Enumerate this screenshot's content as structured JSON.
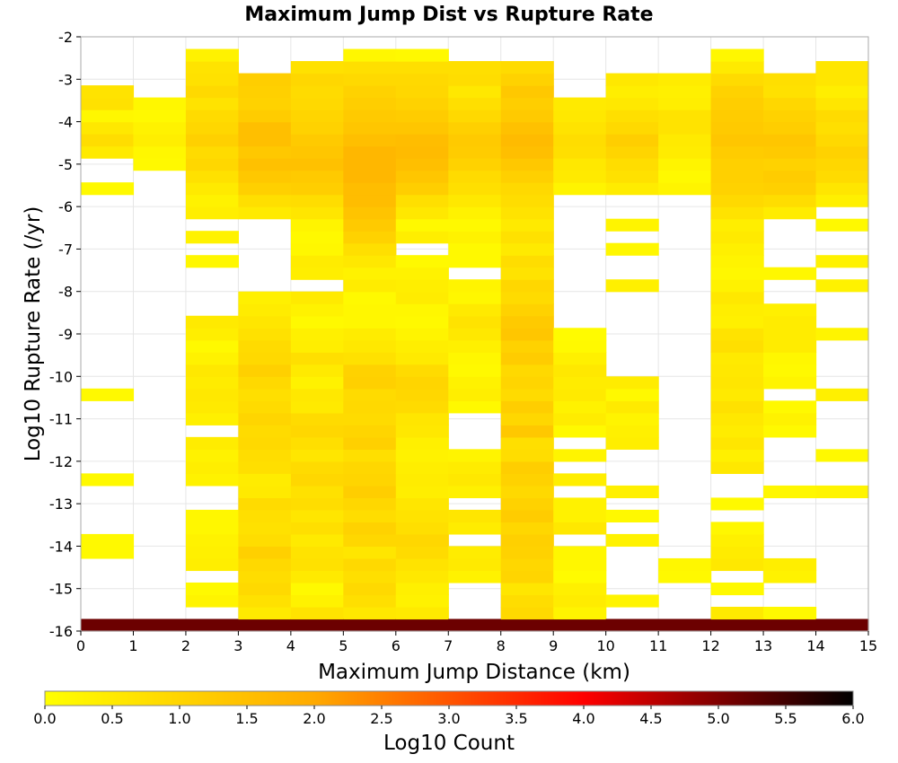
{
  "chart_data": {
    "type": "heatmap",
    "title": "Maximum Jump Dist vs Rupture Rate",
    "xlabel": "Maximum Jump Distance (km)",
    "ylabel": "Log10 Rupture Rate (/yr)",
    "xlim": [
      0,
      15
    ],
    "ylim": [
      -16,
      -2
    ],
    "x_ticks": [
      "0",
      "1",
      "2",
      "3",
      "4",
      "5",
      "6",
      "7",
      "8",
      "9",
      "10",
      "11",
      "12",
      "13",
      "14",
      "15"
    ],
    "y_ticks": [
      "-2",
      "-3",
      "-4",
      "-5",
      "-6",
      "-7",
      "-8",
      "-9",
      "-10",
      "-11",
      "-12",
      "-13",
      "-14",
      "-15",
      "-16"
    ],
    "x_bin_width": 1,
    "y_bin_height": 0.2857,
    "x_bin_start": 0,
    "y_bin_start": -16,
    "grid": true,
    "colorbar": {
      "label": "Log10 Count",
      "range": [
        0,
        6
      ],
      "ticks": [
        "0.0",
        "0.5",
        "1.0",
        "1.5",
        "2.0",
        "2.5",
        "3.0",
        "3.5",
        "4.0",
        "4.5",
        "5.0",
        "5.5",
        "6.0"
      ],
      "stops": [
        "#ffff00",
        "#ffaa00",
        "#ff0000",
        "#000000"
      ]
    },
    "columns": [
      [
        5.15,
        0,
        0,
        0,
        0,
        0,
        0.15,
        0.15,
        0,
        0,
        0,
        0,
        0.15,
        0,
        0,
        0,
        0,
        0,
        0,
        0.15,
        0,
        0,
        0,
        0,
        0,
        0,
        0,
        0,
        0,
        0,
        0,
        0,
        0,
        0,
        0,
        0,
        0.15,
        0,
        0,
        0.5,
        0.8,
        0.55,
        0.2,
        0.7,
        0.65,
        0,
        0,
        0
      ],
      [
        5.15,
        0,
        0,
        0,
        0,
        0,
        0,
        0,
        0,
        0,
        0,
        0,
        0,
        0,
        0,
        0,
        0,
        0,
        0,
        0,
        0,
        0,
        0,
        0,
        0,
        0,
        0,
        0,
        0,
        0,
        0,
        0,
        0,
        0,
        0,
        0,
        0,
        0,
        0.15,
        0.2,
        0.4,
        0.3,
        0.15,
        0.2,
        0,
        0,
        0,
        0
      ],
      [
        5.15,
        0,
        0.25,
        0.15,
        0,
        0.4,
        0.35,
        0.3,
        0.2,
        0.2,
        0,
        0,
        0.3,
        0.4,
        0.3,
        0.45,
        0,
        0.35,
        0.5,
        0.55,
        0.45,
        0.55,
        0.3,
        0.15,
        0.4,
        0.5,
        0,
        0,
        0,
        0,
        0.2,
        0,
        0.3,
        0,
        0.4,
        0.3,
        0.5,
        0.7,
        0.95,
        0.85,
        1.1,
        0.95,
        0.85,
        0.65,
        0.9,
        0.7,
        0.65,
        0.3
      ],
      [
        5.15,
        0.5,
        0.7,
        0.9,
        0.8,
        0.9,
        1.1,
        0.8,
        0.7,
        0.75,
        0.85,
        0.5,
        0.45,
        0.75,
        0.8,
        0.9,
        0.85,
        1.0,
        0.85,
        0.75,
        0.9,
        1.1,
        0.9,
        0.85,
        0.7,
        0.6,
        0.45,
        0.35,
        0,
        0,
        0,
        0,
        0,
        0,
        0.5,
        0.75,
        1.1,
        1.3,
        1.45,
        1.3,
        1.5,
        1.5,
        1.2,
        1.05,
        1.1,
        1.15,
        0,
        0
      ],
      [
        5.15,
        0.65,
        0.3,
        0.15,
        0.5,
        0.7,
        0.65,
        0.5,
        0.75,
        0.6,
        0.8,
        0.7,
        0.95,
        0.85,
        0.6,
        0.75,
        0.95,
        0.85,
        0.5,
        0.55,
        0.3,
        0.5,
        0.75,
        0.4,
        0.35,
        0.15,
        0.3,
        0.5,
        0,
        0.4,
        0.45,
        0.2,
        0.15,
        0.25,
        0.6,
        0.8,
        1.15,
        1.25,
        1.45,
        1.35,
        1.25,
        1.05,
        1.0,
        0.9,
        0.85,
        0.95,
        0.7,
        0
      ],
      [
        5.15,
        0.55,
        0.75,
        0.9,
        0.75,
        0.9,
        0.6,
        0.95,
        1.05,
        0.8,
        0.95,
        1.15,
        1.0,
        0.95,
        0.75,
        1.1,
        1.0,
        0.85,
        0.9,
        0.85,
        1.1,
        1.05,
        0.7,
        0.55,
        0.45,
        0.2,
        0.2,
        0.15,
        0.45,
        0.3,
        0.55,
        0.75,
        1.05,
        1.25,
        1.4,
        1.55,
        1.55,
        1.7,
        1.7,
        1.7,
        1.5,
        1.35,
        1.25,
        1.15,
        1.05,
        0.9,
        0.75,
        0.2
      ],
      [
        5.15,
        0.5,
        0.3,
        0.35,
        0.55,
        0.65,
        0.85,
        0.95,
        0.75,
        0.65,
        0.6,
        0.4,
        0.45,
        0.4,
        0.3,
        0.35,
        0.55,
        0.6,
        0.85,
        0.95,
        1.0,
        0.85,
        0.5,
        0.4,
        0.25,
        0.15,
        0.2,
        0.45,
        0.4,
        0.3,
        0.15,
        0,
        0.4,
        0.15,
        0.55,
        0.75,
        1.15,
        1.35,
        1.5,
        1.6,
        1.55,
        1.35,
        1.2,
        1.05,
        0.95,
        0.9,
        0.75,
        0.15
      ],
      [
        5.15,
        0,
        0,
        0,
        0.3,
        0.5,
        0.45,
        0,
        0.45,
        0.6,
        0,
        0.35,
        0.55,
        0.45,
        0.25,
        0,
        0,
        0,
        0.15,
        0.4,
        0.3,
        0.15,
        0.2,
        0.35,
        0.55,
        0.65,
        0.5,
        0.2,
        0.25,
        0,
        0.15,
        0.15,
        0.3,
        0.15,
        0.3,
        0.55,
        0.75,
        0.85,
        1.05,
        1.2,
        1.25,
        1.1,
        0.9,
        0.75,
        0.55,
        0.8,
        0.75,
        0
      ],
      [
        5.15,
        0.9,
        0.8,
        0.6,
        1.0,
        0.95,
        1.05,
        1.1,
        0.95,
        1.2,
        1.05,
        0.9,
        1.05,
        1.15,
        0.8,
        0.75,
        1.3,
        0.95,
        1.15,
        0.85,
        1.0,
        0.9,
        1.2,
        1.05,
        1.35,
        1.25,
        1.05,
        0.85,
        0.95,
        0.65,
        0.8,
        0.5,
        0.7,
        0.5,
        0.65,
        0.8,
        0.9,
        1.1,
        1.3,
        1.5,
        1.6,
        1.45,
        1.25,
        1.15,
        1.3,
        1.05,
        0.85,
        0
      ],
      [
        5.15,
        0.25,
        0.45,
        0.35,
        0.1,
        0.2,
        0.2,
        0,
        0.55,
        0.3,
        0.3,
        0,
        0.4,
        0,
        0.25,
        0,
        0.15,
        0.45,
        0.3,
        0.5,
        0.45,
        0.55,
        0.35,
        0.15,
        0.1,
        0,
        0,
        0,
        0,
        0,
        0,
        0,
        0,
        0,
        0,
        0,
        0.25,
        0.5,
        0.55,
        0.75,
        0.8,
        0.65,
        0.55,
        0.5,
        0,
        0,
        0,
        0
      ],
      [
        5.15,
        0,
        0.25,
        0,
        0,
        0,
        0,
        0.3,
        0,
        0.15,
        0,
        0.35,
        0,
        0,
        0,
        0.4,
        0.35,
        0.25,
        0.5,
        0.15,
        0.45,
        0,
        0,
        0,
        0,
        0,
        0,
        0,
        0.35,
        0,
        0,
        0.2,
        0,
        0.25,
        0,
        0,
        0.45,
        0.7,
        0.8,
        1.0,
        1.15,
        0.9,
        0.75,
        0.55,
        0.4,
        0.55,
        0,
        0
      ],
      [
        5.15,
        0,
        0,
        0,
        0.15,
        0.2,
        0,
        0,
        0,
        0,
        0,
        0,
        0,
        0,
        0,
        0,
        0,
        0,
        0,
        0,
        0,
        0,
        0,
        0,
        0,
        0,
        0,
        0,
        0,
        0,
        0,
        0,
        0,
        0,
        0,
        0,
        0.25,
        0.15,
        0.25,
        0.45,
        0.5,
        0.65,
        0.65,
        0.4,
        0.35,
        0.45,
        0,
        0
      ],
      [
        5.15,
        0.5,
        0,
        0.15,
        0,
        0.55,
        0.45,
        0.35,
        0.2,
        0,
        0.15,
        0,
        0,
        0.55,
        0.35,
        0.6,
        0.45,
        0.55,
        0.7,
        0.5,
        0.6,
        0.55,
        0.5,
        0.75,
        0.65,
        0.35,
        0.4,
        0.55,
        0.3,
        0.2,
        0.25,
        0.35,
        0.5,
        0.4,
        0.65,
        0.9,
        1.05,
        1.1,
        1.1,
        1.2,
        1.35,
        1.25,
        1.2,
        1.15,
        1.05,
        0.85,
        0.5,
        0.2
      ],
      [
        5.15,
        0.15,
        0,
        0,
        0.3,
        0.4,
        0,
        0,
        0,
        0,
        0,
        0.2,
        0,
        0,
        0,
        0,
        0.15,
        0.3,
        0.15,
        0,
        0.25,
        0.15,
        0.2,
        0.45,
        0.45,
        0.45,
        0.35,
        0,
        0,
        0.2,
        0,
        0,
        0,
        0,
        0.45,
        0.8,
        1.1,
        1.2,
        1.05,
        1.25,
        1.35,
        1.15,
        1.05,
        0.95,
        0.7,
        0.75,
        0,
        0
      ],
      [
        5.15,
        0,
        0,
        0,
        0,
        0,
        0,
        0,
        0,
        0,
        0,
        0.25,
        0,
        0,
        0.15,
        0,
        0,
        0,
        0,
        0.35,
        0,
        0,
        0,
        0,
        0.25,
        0,
        0,
        0,
        0.3,
        0,
        0.3,
        0,
        0,
        0.15,
        0,
        0.35,
        0.6,
        0.85,
        0.95,
        1.05,
        0.9,
        0.75,
        0.85,
        0.6,
        0.4,
        0.6,
        0.6,
        0
      ]
    ]
  }
}
